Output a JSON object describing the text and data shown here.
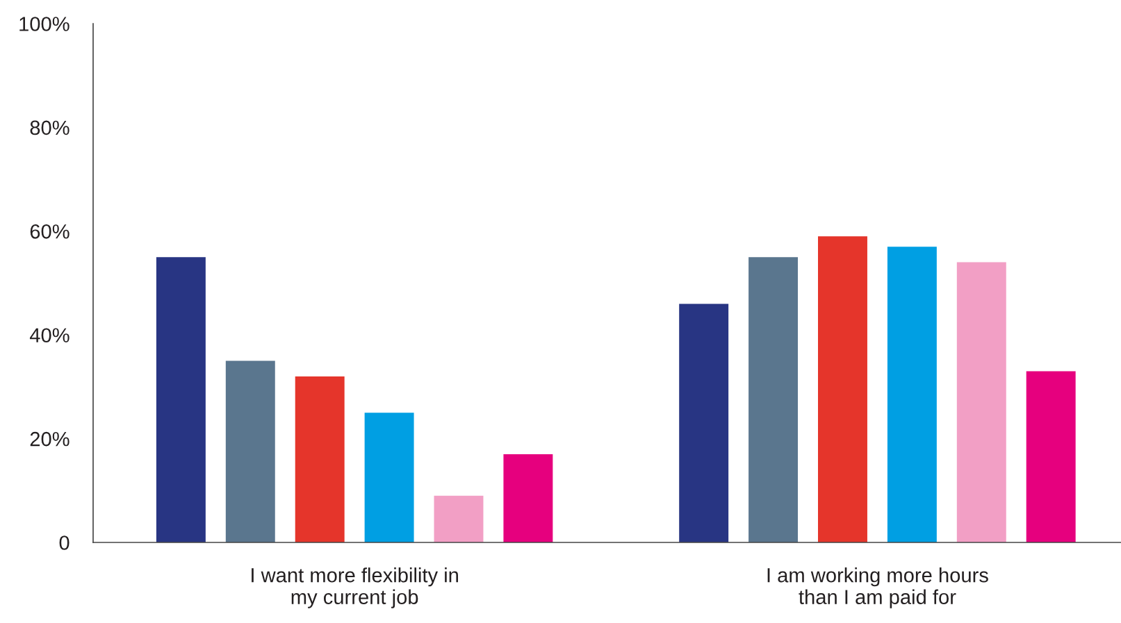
{
  "chart_data": {
    "type": "bar",
    "categories": [
      "I want more flexibility in\nmy current job",
      "I am working more hours\nthan I am paid for"
    ],
    "series": [
      {
        "color": "#283583",
        "values": [
          55,
          46
        ]
      },
      {
        "color": "#5a768e",
        "values": [
          35,
          55
        ]
      },
      {
        "color": "#e5352b",
        "values": [
          32,
          59
        ]
      },
      {
        "color": "#009fe3",
        "values": [
          25,
          57
        ]
      },
      {
        "color": "#f29fc5",
        "values": [
          9,
          54
        ]
      },
      {
        "color": "#e6007e",
        "values": [
          17,
          33
        ]
      }
    ],
    "ylim": [
      0,
      100
    ],
    "yticks": [
      0,
      {
        "value": 20,
        "label": "20%"
      },
      {
        "value": 40,
        "label": "40%"
      },
      {
        "value": 60,
        "label": "60%"
      },
      {
        "value": 80,
        "label": "80%"
      },
      {
        "value": 100,
        "label": "100%"
      }
    ],
    "grid": false
  }
}
